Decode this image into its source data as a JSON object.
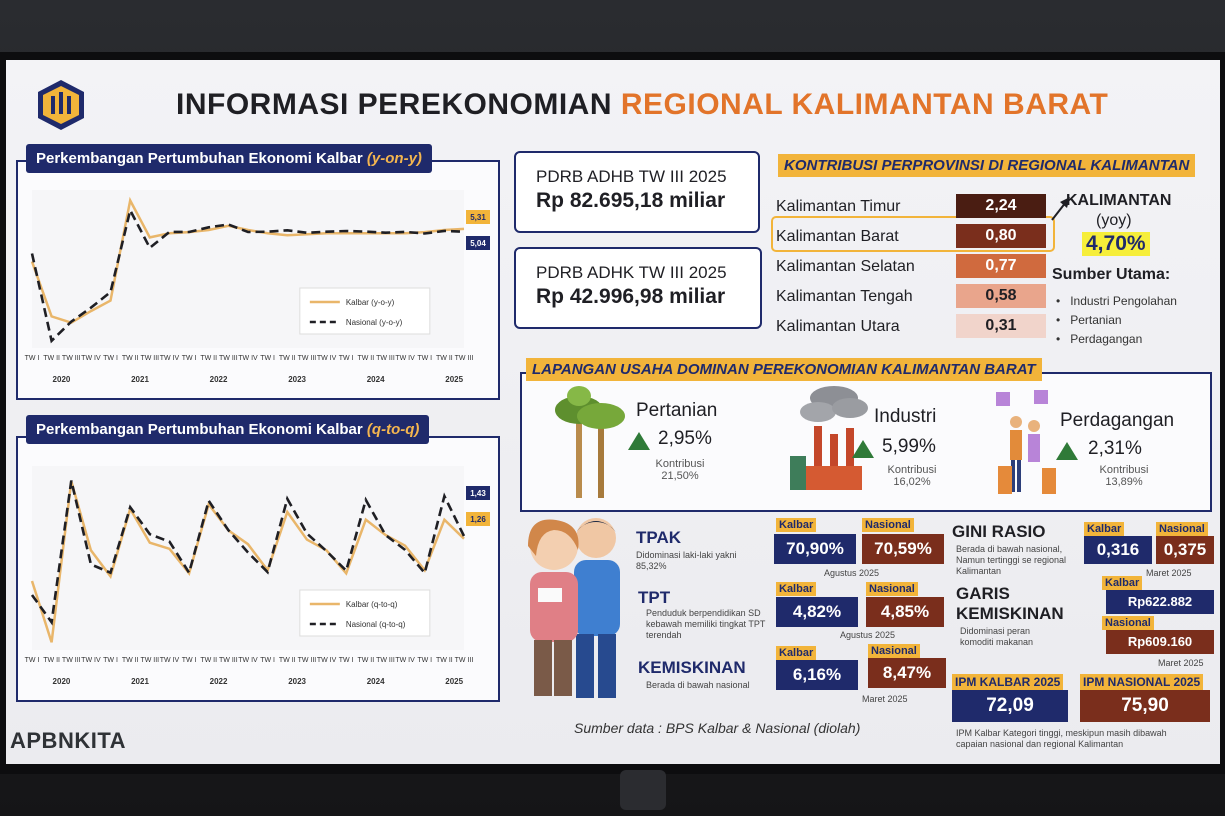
{
  "header": {
    "title_main": "INFORMASI PEREKONOMIAN",
    "title_highlight": "REGIONAL KALIMANTAN BARAT"
  },
  "charts": {
    "yoy_title": "Perkembangan Pertumbuhan Ekonomi Kalbar",
    "yoy_title_suffix": "(y-on-y)",
    "qtq_title": "Perkembangan Pertumbuhan Ekonomi Kalbar",
    "qtq_title_suffix": "(q-to-q)"
  },
  "chart_data": [
    {
      "type": "line",
      "title": "Perkembangan Pertumbuhan Ekonomi Kalbar (y-on-y)",
      "x": [
        "2020 TW I",
        "2020 TW II",
        "2020 TW III",
        "2020 TW IV",
        "2021 TW I",
        "2021 TW II",
        "2021 TW III",
        "2021 TW IV",
        "2022 TW I",
        "2022 TW II",
        "2022 TW III",
        "2022 TW IV",
        "2023 TW I",
        "2023 TW II",
        "2023 TW III",
        "2023 TW IV",
        "2024 TW I",
        "2024 TW II",
        "2024 TW III",
        "2024 TW IV",
        "2025 TW I",
        "2025 TW II",
        "2025 TW III"
      ],
      "year_labels": [
        "2020",
        "2021",
        "2022",
        "2023",
        "2024",
        "2025"
      ],
      "quarter_labels": [
        "TW I",
        "TW II",
        "TW III",
        "TW IV",
        "TW I",
        "TW II",
        "TW III",
        "TW IV",
        "TW I",
        "TW II",
        "TW III",
        "TW IV",
        "TW I",
        "TW II",
        "TW III",
        "TW IV",
        "TW I",
        "TW II",
        "TW III",
        "TW IV",
        "TW I",
        "TW II",
        "TW III"
      ],
      "series": [
        {
          "name": "Kalbar (y-o-y)",
          "color": "#e9b66a",
          "values": [
            2.2,
            -3.0,
            -3.6,
            -2.5,
            -1.5,
            8.0,
            4.5,
            4.9,
            5.0,
            5.2,
            5.6,
            5.2,
            4.9,
            4.7,
            4.8,
            4.9,
            4.9,
            4.9,
            4.9,
            4.9,
            5.0,
            5.2,
            5.31
          ]
        },
        {
          "name": "Nasional (y-o-y)",
          "color": "#1f1f24",
          "values": [
            2.97,
            -5.32,
            -3.49,
            -2.17,
            -0.69,
            7.07,
            3.51,
            5.02,
            5.01,
            5.46,
            5.72,
            5.01,
            5.04,
            5.17,
            4.94,
            5.04,
            5.11,
            5.05,
            4.95,
            5.02,
            4.87,
            5.12,
            5.04
          ]
        }
      ],
      "end_labels": [
        "5,31",
        "5,04"
      ],
      "end_label_colors": [
        "#f2b43a",
        "#1f2a6b"
      ]
    },
    {
      "type": "line",
      "title": "Perkembangan Pertumbuhan Ekonomi Kalbar (q-to-q)",
      "x": [
        "2020 TW I",
        "2020 TW II",
        "2020 TW III",
        "2020 TW IV",
        "2021 TW I",
        "2021 TW II",
        "2021 TW III",
        "2021 TW IV",
        "2022 TW I",
        "2022 TW II",
        "2022 TW III",
        "2022 TW IV",
        "2023 TW I",
        "2023 TW II",
        "2023 TW III",
        "2023 TW IV",
        "2024 TW I",
        "2024 TW II",
        "2024 TW III",
        "2024 TW IV",
        "2025 TW I",
        "2025 TW II",
        "2025 TW III"
      ],
      "year_labels": [
        "2020",
        "2021",
        "2022",
        "2023",
        "2024",
        "2025"
      ],
      "quarter_labels": [
        "TW I",
        "TW II",
        "TW III",
        "TW IV",
        "TW I",
        "TW II",
        "TW III",
        "TW IV",
        "TW I",
        "TW II",
        "TW III",
        "TW IV",
        "TW I",
        "TW II",
        "TW III",
        "TW IV",
        "TW I",
        "TW II",
        "TW III",
        "TW IV",
        "TW I",
        "TW II",
        "TW III"
      ],
      "series": [
        {
          "name": "Kalbar (q-to-q)",
          "color": "#e9b66a",
          "values": [
            -1.5,
            -5.5,
            5.0,
            0.5,
            -1.2,
            3.2,
            1.0,
            0.6,
            -1.0,
            3.5,
            1.8,
            0.9,
            -0.8,
            3.0,
            1.2,
            0.5,
            -1.0,
            2.5,
            1.5,
            0.8,
            -0.8,
            2.5,
            1.26
          ]
        },
        {
          "name": "Nasional (q-to-q)",
          "color": "#1f1f24",
          "values": [
            -2.41,
            -4.19,
            5.05,
            -0.42,
            -0.96,
            3.31,
            1.55,
            1.06,
            -0.96,
            3.73,
            1.81,
            0.36,
            -0.92,
            3.86,
            1.6,
            0.45,
            -0.83,
            3.79,
            1.5,
            0.53,
            -0.98,
            4.04,
            1.43
          ]
        }
      ],
      "end_labels": [
        "1,43",
        "1,26"
      ],
      "end_label_colors": [
        "#1f2a6b",
        "#f2b43a"
      ]
    }
  ],
  "pdrb": {
    "adhb_label": "PDRB ADHB TW III 2025",
    "adhb_value": "Rp 82.695,18 miliar",
    "adhk_label": "PDRB ADHK TW III 2025",
    "adhk_value": "Rp 42.996,98 miliar"
  },
  "kontribusi": {
    "title": "KONTRIBUSI PERPROVINSI DI REGIONAL KALIMANTAN",
    "rows": [
      {
        "name": "Kalimantan Timur",
        "value": "2,24",
        "color": "#4a1d12"
      },
      {
        "name": "Kalimantan Barat",
        "value": "0,80",
        "color": "#7a2e1c"
      },
      {
        "name": "Kalimantan Selatan",
        "value": "0,77",
        "color": "#d06a3e"
      },
      {
        "name": "Kalimantan Tengah",
        "value": "0,58",
        "color": "#e9a58c"
      },
      {
        "name": "Kalimantan Utara",
        "value": "0,31",
        "color": "#f1d4cb"
      }
    ],
    "region_label": "KALIMANTAN",
    "region_sub": "(yoy)",
    "region_value": "4,70%",
    "sumber_label": "Sumber Utama:",
    "sumber_items": [
      "Industri Pengolahan",
      "Pertanian",
      "Perdagangan"
    ]
  },
  "lapangan": {
    "title": "LAPANGAN USAHA DOMINAN PEREKONOMIAN KALIMANTAN BARAT",
    "sectors": [
      {
        "name": "Pertanian",
        "growth": "2,95%",
        "kontribusi_label": "Kontribusi",
        "kontribusi": "21,50%"
      },
      {
        "name": "Industri",
        "growth": "5,99%",
        "kontribusi_label": "Kontribusi",
        "kontribusi": "16,02%"
      },
      {
        "name": "Perdagangan",
        "growth": "2,31%",
        "kontribusi_label": "Kontribusi",
        "kontribusi": "13,89%"
      }
    ]
  },
  "stats": {
    "tpak": {
      "label": "TPAK",
      "desc": "Didominasi laki-laki yakni 85,32%",
      "kalbar_tag": "Kalbar",
      "nasional_tag": "Nasional",
      "kalbar": "70,90%",
      "nasional": "70,59%",
      "date": "Agustus 2025"
    },
    "tpt": {
      "label": "TPT",
      "desc": "Penduduk berpendidikan SD kebawah memiliki tingkat TPT terendah",
      "kalbar_tag": "Kalbar",
      "nasional_tag": "Nasional",
      "kalbar": "4,82%",
      "nasional": "4,85%",
      "date": "Agustus 2025"
    },
    "kemiskinan": {
      "label": "KEMISKINAN",
      "desc": "Berada di bawah nasional",
      "kalbar_tag": "Kalbar",
      "nasional_tag": "Nasional",
      "kalbar": "6,16%",
      "nasional": "8,47%",
      "date": "Maret 2025"
    },
    "gini": {
      "label": "GINI RASIO",
      "desc": "Berada di bawah nasional, Namun tertinggi se regional Kalimantan",
      "kalbar_tag": "Kalbar",
      "nasional_tag": "Nasional",
      "kalbar": "0,316",
      "nasional": "0,375",
      "date": "Maret 2025"
    },
    "garis": {
      "label": "GARIS KEMISKINAN",
      "desc": "Didominasi peran komoditi makanan",
      "kalbar_tag": "Kalbar",
      "nasional_tag": "Nasional",
      "kalbar": "Rp622.882",
      "nasional": "Rp609.160",
      "date": "Maret 2025"
    },
    "ipm": {
      "kalbar_tag": "IPM KALBAR 2025",
      "nasional_tag": "IPM NASIONAL 2025",
      "kalbar": "72,09",
      "nasional": "75,90",
      "note": "IPM Kalbar Kategori tinggi, meskipun masih dibawah capaian nasional dan regional Kalimantan"
    }
  },
  "footer": {
    "brand": "APBNKITA",
    "source": "Sumber data : BPS Kalbar & Nasional (diolah)"
  }
}
